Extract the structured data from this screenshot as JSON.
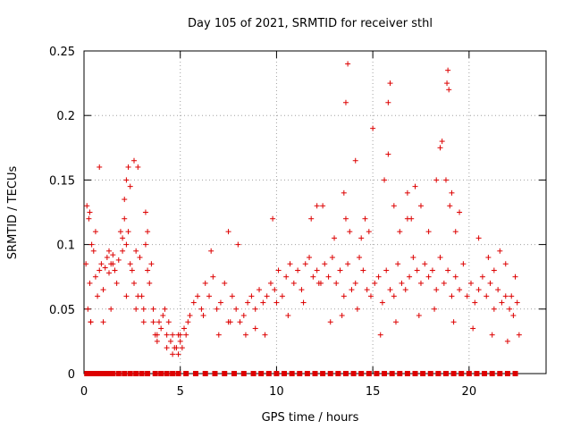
{
  "chart_data": {
    "type": "scatter",
    "title": "Day 105 of 2021, SRMTID for receiver sthl",
    "xlabel": "GPS time / hours",
    "ylabel": "SRMTID / TECUs",
    "xlim": [
      0,
      24
    ],
    "ylim": [
      0,
      0.25
    ],
    "xticks": [
      0,
      5,
      10,
      15,
      20
    ],
    "xtick_labels": [
      "0",
      "5",
      "10",
      "15",
      "20"
    ],
    "yticks": [
      0,
      0.05,
      0.1,
      0.15,
      0.2,
      0.25
    ],
    "ytick_labels": [
      "0",
      "0.05",
      "0.1",
      "0.15",
      "0.2",
      "0.25"
    ],
    "grid": true,
    "marker": "+",
    "color": "#dd0000",
    "series": [
      {
        "name": "SRMTID",
        "x": [
          0.1,
          0.15,
          0.2,
          0.25,
          0.3,
          0.35,
          0.4,
          0.5,
          0.6,
          0.7,
          0.8,
          0.9,
          1.0,
          1.1,
          1.2,
          1.3,
          1.4,
          1.5,
          1.6,
          1.7,
          1.8,
          1.9,
          2.0,
          2.1,
          2.2,
          2.3,
          2.4,
          2.5,
          2.6,
          2.7,
          2.8,
          2.9,
          3.0,
          3.1,
          3.2,
          3.3,
          3.4,
          3.5,
          3.6,
          3.7,
          3.8,
          3.9,
          4.0,
          4.1,
          4.2,
          4.3,
          4.4,
          4.5,
          4.6,
          4.7,
          4.8,
          4.9,
          5.0,
          5.1,
          5.2,
          5.3,
          5.5,
          5.7,
          5.9,
          6.1,
          6.3,
          6.5,
          6.7,
          6.9,
          7.1,
          7.3,
          7.5,
          7.7,
          7.9,
          8.1,
          8.3,
          8.5,
          8.7,
          8.9,
          9.1,
          9.3,
          9.5,
          9.7,
          9.9,
          10.1,
          10.3,
          10.5,
          10.7,
          10.9,
          11.1,
          11.3,
          11.5,
          11.7,
          11.9,
          12.1,
          12.3,
          12.5,
          12.7,
          12.9,
          13.1,
          13.3,
          13.5,
          13.7,
          13.9,
          14.1,
          14.3,
          14.5,
          14.7,
          14.9,
          15.1,
          15.3,
          15.5,
          15.7,
          15.9,
          16.1,
          16.3,
          16.5,
          16.7,
          16.9,
          17.1,
          17.3,
          17.5,
          17.7,
          17.9,
          18.1,
          18.3,
          18.5,
          18.7,
          18.9,
          19.1,
          19.3,
          19.5,
          19.7,
          19.9,
          20.1,
          20.3,
          20.5,
          20.7,
          20.9,
          21.1,
          21.3,
          21.5,
          21.7,
          21.9,
          22.1,
          22.3,
          22.5,
          0.3,
          0.6,
          0.8,
          1.3,
          1.5,
          2.0,
          2.1,
          2.2,
          2.3,
          2.4,
          2.6,
          2.8,
          3.2,
          3.3,
          6.6,
          7.5,
          8.0,
          9.8,
          11.8,
          12.1,
          12.4,
          13.0,
          13.5,
          13.6,
          13.8,
          14.1,
          14.4,
          14.6,
          14.8,
          15.0,
          15.6,
          15.8,
          16.1,
          16.4,
          16.8,
          17.0,
          17.2,
          17.5,
          17.9,
          18.3,
          18.5,
          18.6,
          18.8,
          19.0,
          19.1,
          19.3,
          19.5,
          20.5,
          21.0,
          21.3,
          21.6,
          21.9,
          22.2,
          22.4,
          13.6,
          13.7,
          15.8,
          15.9,
          18.85,
          18.9,
          18.95,
          16.8,
          0.35,
          1.0,
          1.4,
          2.2,
          2.7,
          3.1,
          3.6,
          3.8,
          4.3,
          4.6,
          4.9,
          5.0,
          5.4,
          6.2,
          7.0,
          7.6,
          8.4,
          8.9,
          9.4,
          10.0,
          10.6,
          11.4,
          12.2,
          12.8,
          13.4,
          14.2,
          15.4,
          16.2,
          17.4,
          18.2,
          19.2,
          20.2,
          21.2,
          22.0,
          22.6
        ],
        "y": [
          0.085,
          0.13,
          0.05,
          0.12,
          0.07,
          0.04,
          0.1,
          0.095,
          0.075,
          0.06,
          0.08,
          0.085,
          0.065,
          0.082,
          0.09,
          0.078,
          0.085,
          0.092,
          0.08,
          0.07,
          0.088,
          0.11,
          0.095,
          0.135,
          0.15,
          0.16,
          0.085,
          0.08,
          0.07,
          0.095,
          0.06,
          0.09,
          0.06,
          0.05,
          0.1,
          0.08,
          0.07,
          0.085,
          0.04,
          0.03,
          0.025,
          0.04,
          0.035,
          0.045,
          0.05,
          0.03,
          0.04,
          0.025,
          0.03,
          0.02,
          0.02,
          0.03,
          0.025,
          0.02,
          0.035,
          0.03,
          0.045,
          0.055,
          0.06,
          0.05,
          0.07,
          0.06,
          0.075,
          0.05,
          0.055,
          0.07,
          0.04,
          0.06,
          0.05,
          0.04,
          0.045,
          0.055,
          0.06,
          0.05,
          0.065,
          0.055,
          0.06,
          0.07,
          0.065,
          0.08,
          0.06,
          0.075,
          0.085,
          0.07,
          0.08,
          0.065,
          0.085,
          0.09,
          0.075,
          0.08,
          0.07,
          0.085,
          0.075,
          0.09,
          0.07,
          0.08,
          0.06,
          0.085,
          0.065,
          0.07,
          0.09,
          0.08,
          0.065,
          0.06,
          0.07,
          0.075,
          0.055,
          0.08,
          0.065,
          0.06,
          0.085,
          0.07,
          0.065,
          0.075,
          0.09,
          0.08,
          0.07,
          0.085,
          0.075,
          0.08,
          0.065,
          0.09,
          0.07,
          0.08,
          0.06,
          0.075,
          0.065,
          0.085,
          0.06,
          0.07,
          0.055,
          0.065,
          0.075,
          0.06,
          0.07,
          0.05,
          0.065,
          0.055,
          0.06,
          0.05,
          0.045,
          0.055,
          0.125,
          0.11,
          0.16,
          0.095,
          0.085,
          0.105,
          0.12,
          0.1,
          0.11,
          0.145,
          0.165,
          0.16,
          0.125,
          0.11,
          0.095,
          0.11,
          0.1,
          0.12,
          0.12,
          0.13,
          0.13,
          0.105,
          0.14,
          0.12,
          0.11,
          0.165,
          0.105,
          0.12,
          0.11,
          0.19,
          0.15,
          0.17,
          0.13,
          0.11,
          0.14,
          0.12,
          0.145,
          0.13,
          0.11,
          0.15,
          0.175,
          0.18,
          0.15,
          0.13,
          0.14,
          0.11,
          0.125,
          0.105,
          0.09,
          0.08,
          0.095,
          0.085,
          0.06,
          0.075,
          0.21,
          0.24,
          0.21,
          0.225,
          0.225,
          0.235,
          0.22,
          0.12,
          0.04,
          0.04,
          0.05,
          0.06,
          0.05,
          0.04,
          0.05,
          0.03,
          0.02,
          0.015,
          0.015,
          0.03,
          0.04,
          0.045,
          0.03,
          0.04,
          0.03,
          0.035,
          0.03,
          0.055,
          0.045,
          0.055,
          0.07,
          0.04,
          0.045,
          0.05,
          0.03,
          0.04,
          0.045,
          0.05,
          0.04,
          0.035,
          0.03,
          0.025,
          0.03
        ],
        "zero_x": [
          0.15,
          0.3,
          0.45,
          0.6,
          0.75,
          0.9,
          1.1,
          1.3,
          1.5,
          1.8,
          2.1,
          2.4,
          2.7,
          3.0,
          3.3,
          3.7,
          4.0,
          4.3,
          4.6,
          4.9,
          5.3,
          5.8,
          6.3,
          6.8,
          7.3,
          7.8,
          8.3,
          8.8,
          9.2,
          9.6,
          10.0,
          10.4,
          10.8,
          11.2,
          11.6,
          12.0,
          12.4,
          12.8,
          13.2,
          13.6,
          14.0,
          14.4,
          14.8,
          15.2,
          15.6,
          16.0,
          16.4,
          16.8,
          17.2,
          17.6,
          18.0,
          18.4,
          18.8,
          19.2,
          19.6,
          20.0,
          20.4,
          20.8,
          21.2,
          21.6,
          22.0,
          22.4
        ],
        "zero_y": 0
      }
    ]
  }
}
